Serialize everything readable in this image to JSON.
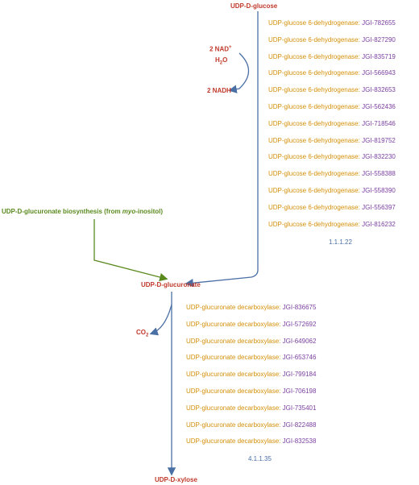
{
  "compounds": {
    "top": "UDP-D-glucose",
    "middle": "UDP-D-glucuronate",
    "bottom": "UDP-D-xylose"
  },
  "side_reaction_1": {
    "input_1": "2 NAD",
    "input_1_sup": "+",
    "input_2": "H",
    "input_2_sub": "2",
    "input_2_tail": "O",
    "output": "2 NADH"
  },
  "side_reaction_2": {
    "output": "CO",
    "output_sub": "2"
  },
  "external_pathway": {
    "label_prefix": "UDP-D-glucuronate biosynthesis (from ",
    "label_italic": "myo",
    "label_suffix": "-inositol)"
  },
  "step1": {
    "ec": "1.1.1.22",
    "enzyme_name": "UDP-glucose 6-dehydrogenase:",
    "genes": [
      "JGI-782655",
      "JGI-827290",
      "JGI-835719",
      "JGI-566943",
      "JGI-832653",
      "JGI-562436",
      "JGI-718546",
      "JGI-819752",
      "JGI-832230",
      "JGI-558388",
      "JGI-558390",
      "JGI-556397",
      "JGI-816232"
    ]
  },
  "step2": {
    "ec": "4.1.1.35",
    "enzyme_name": "UDP-glucuronate decarboxylase:",
    "genes": [
      "JGI-836675",
      "JGI-572692",
      "JGI-649062",
      "JGI-653746",
      "JGI-799184",
      "JGI-706198",
      "JGI-735401",
      "JGI-822488",
      "JGI-832538"
    ]
  },
  "colors": {
    "compound": "#c0392b",
    "enzyme": "#d4900a",
    "gene_id": "#7b3fa0",
    "arrow": "#4a6fa5",
    "external": "#5a8a1e"
  }
}
